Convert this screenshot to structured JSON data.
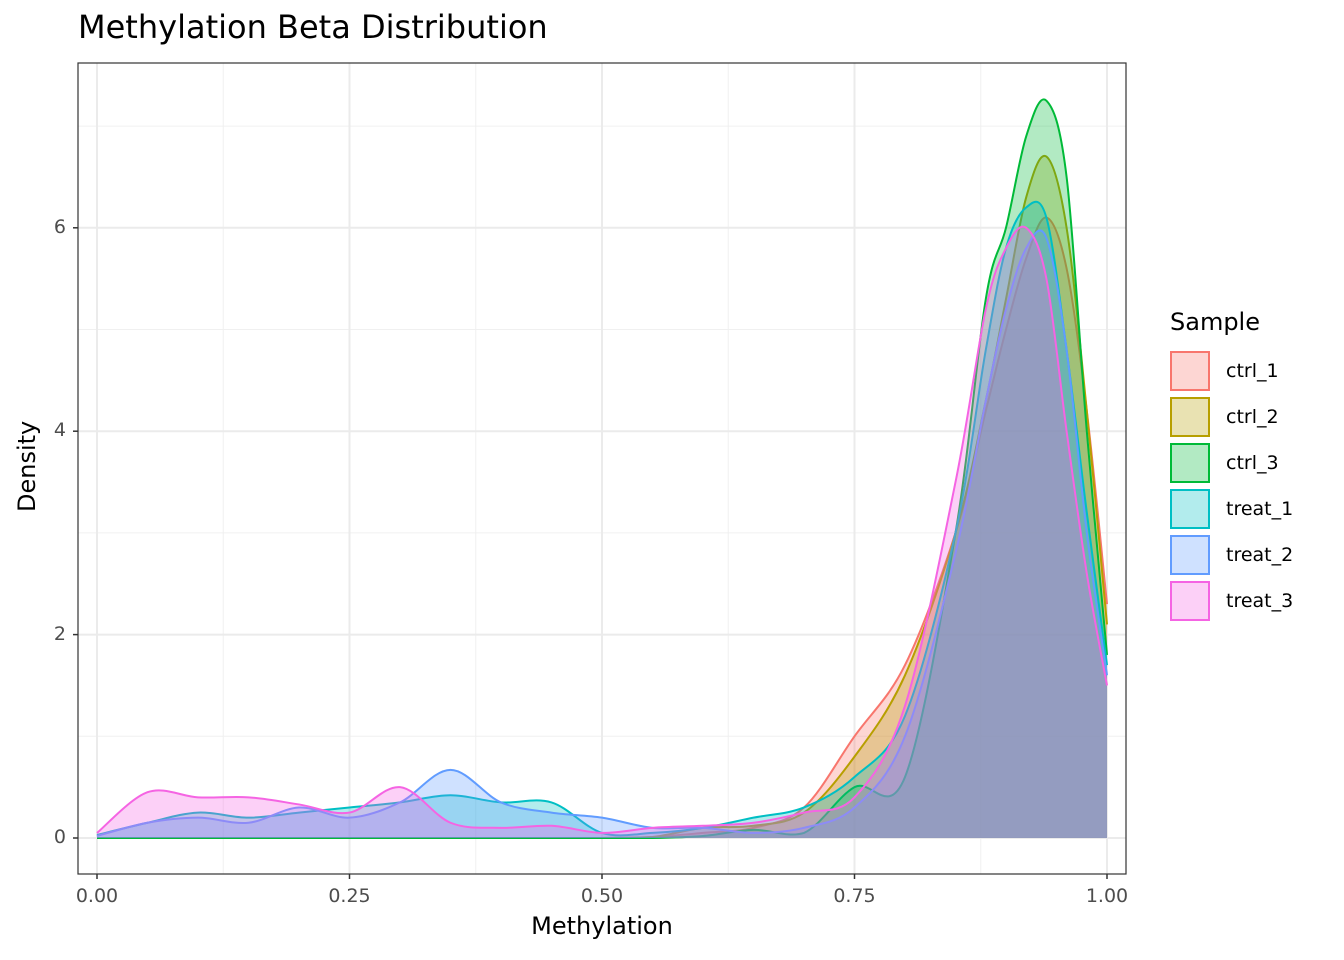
{
  "chart_data": {
    "type": "area",
    "title": "Methylation Beta Distribution",
    "xlabel": "Methylation",
    "ylabel": "Density",
    "xlim": [
      0,
      1
    ],
    "ylim": [
      0,
      7.3
    ],
    "x_ticks": [
      "0.00",
      "0.25",
      "0.50",
      "0.75",
      "1.00"
    ],
    "y_ticks": [
      "0",
      "2",
      "4",
      "6"
    ],
    "grid": true,
    "legend_position": "right",
    "legend_title": "Sample",
    "x": [
      0.0,
      0.05,
      0.1,
      0.15,
      0.2,
      0.25,
      0.3,
      0.35,
      0.4,
      0.45,
      0.5,
      0.55,
      0.6,
      0.65,
      0.7,
      0.75,
      0.8,
      0.85,
      0.88,
      0.9,
      0.92,
      0.94,
      0.96,
      0.98,
      1.0
    ],
    "series": [
      {
        "name": "ctrl_1",
        "color": "#F8766D",
        "values": [
          0,
          0,
          0,
          0,
          0,
          0,
          0,
          0,
          0,
          0,
          0,
          0.01,
          0.05,
          0.1,
          0.3,
          1.0,
          1.7,
          3.0,
          4.2,
          5.0,
          5.7,
          6.1,
          5.6,
          4.2,
          2.3
        ]
      },
      {
        "name": "ctrl_2",
        "color": "#B79F00",
        "values": [
          0,
          0,
          0,
          0,
          0,
          0,
          0,
          0,
          0,
          0,
          0,
          0.01,
          0.1,
          0.12,
          0.25,
          0.8,
          1.6,
          3.0,
          4.3,
          5.3,
          6.3,
          6.7,
          6.0,
          4.2,
          2.1
        ]
      },
      {
        "name": "ctrl_3",
        "color": "#00BA38",
        "values": [
          0,
          0,
          0,
          0,
          0,
          0,
          0,
          0,
          0,
          0,
          0,
          0,
          0.02,
          0.08,
          0.05,
          0.5,
          0.6,
          3.0,
          5.3,
          6.0,
          6.9,
          7.25,
          6.5,
          4.0,
          1.8
        ]
      },
      {
        "name": "treat_1",
        "color": "#00BFC4",
        "values": [
          0.03,
          0.15,
          0.25,
          0.2,
          0.25,
          0.3,
          0.35,
          0.42,
          0.35,
          0.35,
          0.05,
          0.05,
          0.1,
          0.2,
          0.3,
          0.6,
          1.2,
          3.0,
          4.8,
          5.8,
          6.2,
          6.1,
          4.8,
          3.2,
          1.7
        ]
      },
      {
        "name": "treat_2",
        "color": "#619CFF",
        "values": [
          0.02,
          0.15,
          0.2,
          0.15,
          0.3,
          0.2,
          0.35,
          0.67,
          0.35,
          0.25,
          0.2,
          0.1,
          0.1,
          0.05,
          0.1,
          0.3,
          1.0,
          2.8,
          4.3,
          5.2,
          5.8,
          5.9,
          4.8,
          3.0,
          1.6
        ]
      },
      {
        "name": "treat_3",
        "color": "#F564E3",
        "values": [
          0.05,
          0.45,
          0.4,
          0.4,
          0.33,
          0.25,
          0.5,
          0.15,
          0.1,
          0.12,
          0.05,
          0.1,
          0.12,
          0.15,
          0.25,
          0.4,
          1.3,
          3.5,
          5.2,
          5.8,
          6.0,
          5.5,
          4.0,
          2.6,
          1.5
        ]
      }
    ]
  }
}
